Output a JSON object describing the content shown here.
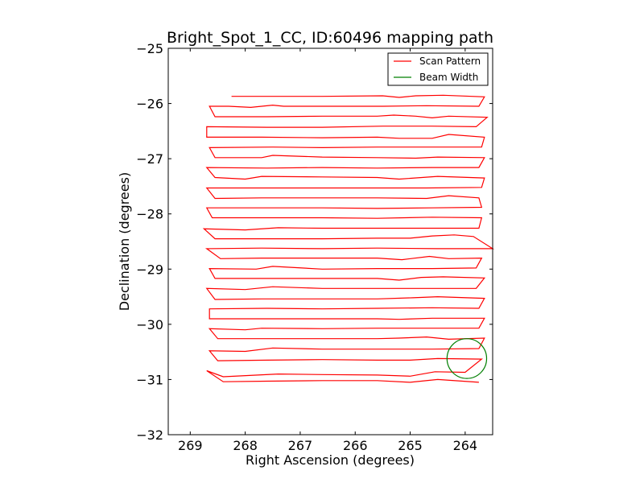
{
  "chart_data": {
    "type": "line",
    "title": "Bright_Spot_1_CC, ID:60496 mapping path",
    "xlabel": "Right Ascension (degrees)",
    "ylabel": "Declination (degrees)",
    "xlim": [
      269.4,
      263.5
    ],
    "ylim": [
      -32,
      -25
    ],
    "x_ticks": [
      269,
      268,
      267,
      266,
      265,
      264
    ],
    "y_ticks": [
      -32,
      -31,
      -30,
      -29,
      -28,
      -27,
      -26,
      -25
    ],
    "x_tick_labels": [
      "269",
      "268",
      "267",
      "266",
      "265",
      "264"
    ],
    "y_tick_labels": [
      "−32",
      "−31",
      "−30",
      "−29",
      "−28",
      "−27",
      "−26",
      "−25"
    ],
    "grid": false,
    "legend": {
      "position": "top-right",
      "entries": [
        "Scan Pattern",
        "Beam Width"
      ]
    },
    "series": [
      {
        "name": "Scan Pattern",
        "color": "#ff0000",
        "points": [
          [
            268.25,
            -25.87
          ],
          [
            267.5,
            -25.87
          ],
          [
            266.6,
            -25.87
          ],
          [
            265.5,
            -25.86
          ],
          [
            265.2,
            -25.89
          ],
          [
            264.9,
            -25.86
          ],
          [
            264.4,
            -25.85
          ],
          [
            263.65,
            -25.88
          ],
          [
            263.75,
            -26.05
          ],
          [
            264.7,
            -26.04
          ],
          [
            265.5,
            -26.05
          ],
          [
            266.5,
            -26.05
          ],
          [
            267.3,
            -26.05
          ],
          [
            267.5,
            -26.03
          ],
          [
            267.9,
            -26.07
          ],
          [
            268.3,
            -26.05
          ],
          [
            268.65,
            -26.05
          ],
          [
            268.55,
            -26.24
          ],
          [
            267.6,
            -26.24
          ],
          [
            266.6,
            -26.23
          ],
          [
            265.6,
            -26.23
          ],
          [
            265.3,
            -26.21
          ],
          [
            264.9,
            -26.23
          ],
          [
            264.6,
            -26.26
          ],
          [
            264.3,
            -26.23
          ],
          [
            263.6,
            -26.25
          ],
          [
            263.8,
            -26.42
          ],
          [
            264.6,
            -26.41
          ],
          [
            265.5,
            -26.41
          ],
          [
            266.6,
            -26.43
          ],
          [
            267.6,
            -26.43
          ],
          [
            268.7,
            -26.42
          ],
          [
            268.7,
            -26.61
          ],
          [
            267.7,
            -26.61
          ],
          [
            266.6,
            -26.62
          ],
          [
            265.6,
            -26.61
          ],
          [
            265.2,
            -26.63
          ],
          [
            264.6,
            -26.63
          ],
          [
            264.3,
            -26.56
          ],
          [
            263.65,
            -26.61
          ],
          [
            263.7,
            -26.79
          ],
          [
            264.7,
            -26.79
          ],
          [
            265.6,
            -26.79
          ],
          [
            266.6,
            -26.8
          ],
          [
            267.5,
            -26.79
          ],
          [
            268.65,
            -26.8
          ],
          [
            268.55,
            -26.98
          ],
          [
            267.7,
            -26.98
          ],
          [
            267.5,
            -26.94
          ],
          [
            266.6,
            -26.97
          ],
          [
            265.6,
            -26.98
          ],
          [
            264.9,
            -26.99
          ],
          [
            264.5,
            -26.97
          ],
          [
            263.65,
            -26.98
          ],
          [
            263.75,
            -27.16
          ],
          [
            264.6,
            -27.16
          ],
          [
            265.6,
            -27.17
          ],
          [
            266.6,
            -27.16
          ],
          [
            267.6,
            -27.17
          ],
          [
            268.7,
            -27.16
          ],
          [
            268.55,
            -27.34
          ],
          [
            268.0,
            -27.37
          ],
          [
            267.7,
            -27.32
          ],
          [
            266.6,
            -27.33
          ],
          [
            265.6,
            -27.34
          ],
          [
            265.2,
            -27.37
          ],
          [
            264.5,
            -27.32
          ],
          [
            263.65,
            -27.35
          ],
          [
            263.7,
            -27.52
          ],
          [
            264.7,
            -27.53
          ],
          [
            265.6,
            -27.53
          ],
          [
            266.6,
            -27.53
          ],
          [
            267.6,
            -27.53
          ],
          [
            268.7,
            -27.53
          ],
          [
            268.55,
            -27.72
          ],
          [
            267.7,
            -27.71
          ],
          [
            266.6,
            -27.71
          ],
          [
            265.6,
            -27.71
          ],
          [
            264.7,
            -27.72
          ],
          [
            264.3,
            -27.67
          ],
          [
            263.75,
            -27.71
          ],
          [
            263.7,
            -27.88
          ],
          [
            264.6,
            -27.89
          ],
          [
            265.6,
            -27.9
          ],
          [
            266.6,
            -27.89
          ],
          [
            267.5,
            -27.89
          ],
          [
            268.7,
            -27.89
          ],
          [
            268.6,
            -28.07
          ],
          [
            267.7,
            -28.07
          ],
          [
            266.6,
            -28.07
          ],
          [
            265.6,
            -28.08
          ],
          [
            265.1,
            -28.07
          ],
          [
            264.6,
            -28.06
          ],
          [
            263.7,
            -28.07
          ],
          [
            263.75,
            -28.26
          ],
          [
            264.6,
            -28.26
          ],
          [
            265.6,
            -28.26
          ],
          [
            266.6,
            -28.26
          ],
          [
            267.4,
            -28.25
          ],
          [
            268.0,
            -28.29
          ],
          [
            268.75,
            -28.27
          ],
          [
            268.55,
            -28.45
          ],
          [
            267.7,
            -28.45
          ],
          [
            266.6,
            -28.45
          ],
          [
            265.6,
            -28.44
          ],
          [
            265.0,
            -28.44
          ],
          [
            264.6,
            -28.4
          ],
          [
            264.2,
            -28.38
          ],
          [
            263.85,
            -28.41
          ],
          [
            263.5,
            -28.63
          ],
          [
            264.5,
            -28.63
          ],
          [
            265.6,
            -28.62
          ],
          [
            266.6,
            -28.63
          ],
          [
            267.7,
            -28.62
          ],
          [
            268.7,
            -28.63
          ],
          [
            268.45,
            -28.81
          ],
          [
            267.7,
            -28.8
          ],
          [
            266.6,
            -28.8
          ],
          [
            265.6,
            -28.8
          ],
          [
            265.15,
            -28.83
          ],
          [
            264.65,
            -28.77
          ],
          [
            264.3,
            -28.81
          ],
          [
            263.7,
            -28.8
          ],
          [
            263.8,
            -28.98
          ],
          [
            264.6,
            -28.99
          ],
          [
            265.6,
            -28.99
          ],
          [
            266.6,
            -29.0
          ],
          [
            267.5,
            -28.95
          ],
          [
            267.8,
            -29.0
          ],
          [
            268.65,
            -28.99
          ],
          [
            268.55,
            -29.17
          ],
          [
            267.7,
            -29.17
          ],
          [
            266.6,
            -29.17
          ],
          [
            265.6,
            -29.17
          ],
          [
            265.2,
            -29.2
          ],
          [
            264.8,
            -29.15
          ],
          [
            264.4,
            -29.14
          ],
          [
            263.65,
            -29.16
          ],
          [
            263.8,
            -29.35
          ],
          [
            264.7,
            -29.35
          ],
          [
            265.6,
            -29.35
          ],
          [
            266.6,
            -29.35
          ],
          [
            267.5,
            -29.32
          ],
          [
            268.0,
            -29.37
          ],
          [
            268.7,
            -29.35
          ],
          [
            268.55,
            -29.55
          ],
          [
            267.7,
            -29.54
          ],
          [
            266.6,
            -29.54
          ],
          [
            265.6,
            -29.54
          ],
          [
            264.95,
            -29.52
          ],
          [
            264.5,
            -29.5
          ],
          [
            263.65,
            -29.53
          ],
          [
            263.75,
            -29.71
          ],
          [
            264.6,
            -29.7
          ],
          [
            265.6,
            -29.71
          ],
          [
            266.6,
            -29.72
          ],
          [
            267.6,
            -29.71
          ],
          [
            268.65,
            -29.72
          ],
          [
            268.65,
            -29.9
          ],
          [
            267.7,
            -29.9
          ],
          [
            266.6,
            -29.9
          ],
          [
            265.6,
            -29.9
          ],
          [
            265.2,
            -29.91
          ],
          [
            264.6,
            -29.89
          ],
          [
            263.65,
            -29.89
          ],
          [
            263.75,
            -30.07
          ],
          [
            264.6,
            -30.07
          ],
          [
            265.6,
            -30.07
          ],
          [
            266.6,
            -30.08
          ],
          [
            267.7,
            -30.07
          ],
          [
            268.0,
            -30.1
          ],
          [
            268.65,
            -30.08
          ],
          [
            268.5,
            -30.26
          ],
          [
            267.7,
            -30.26
          ],
          [
            266.6,
            -30.26
          ],
          [
            265.6,
            -30.26
          ],
          [
            265.2,
            -30.25
          ],
          [
            264.7,
            -30.23
          ],
          [
            264.3,
            -30.27
          ],
          [
            263.65,
            -30.25
          ],
          [
            263.75,
            -30.44
          ],
          [
            264.6,
            -30.45
          ],
          [
            265.6,
            -30.45
          ],
          [
            266.6,
            -30.45
          ],
          [
            267.5,
            -30.43
          ],
          [
            268.0,
            -30.49
          ],
          [
            268.65,
            -30.48
          ],
          [
            268.5,
            -30.66
          ],
          [
            267.6,
            -30.65
          ],
          [
            266.6,
            -30.64
          ],
          [
            265.6,
            -30.65
          ],
          [
            265.0,
            -30.65
          ],
          [
            264.5,
            -30.62
          ],
          [
            263.7,
            -30.63
          ],
          [
            264.0,
            -30.87
          ],
          [
            264.55,
            -30.86
          ],
          [
            265.0,
            -30.94
          ],
          [
            265.6,
            -30.92
          ],
          [
            266.6,
            -30.91
          ],
          [
            267.4,
            -30.9
          ],
          [
            268.4,
            -30.95
          ],
          [
            268.7,
            -30.84
          ],
          [
            268.4,
            -31.04
          ],
          [
            267.6,
            -31.03
          ],
          [
            266.6,
            -31.02
          ],
          [
            265.6,
            -31.02
          ],
          [
            265.0,
            -31.05
          ],
          [
            264.5,
            -31.0
          ],
          [
            263.75,
            -31.05
          ]
        ]
      }
    ],
    "circle": {
      "name": "Beam Width",
      "color": "#007f00",
      "center": [
        263.97,
        -30.62
      ],
      "radius_deg": 0.36
    }
  }
}
